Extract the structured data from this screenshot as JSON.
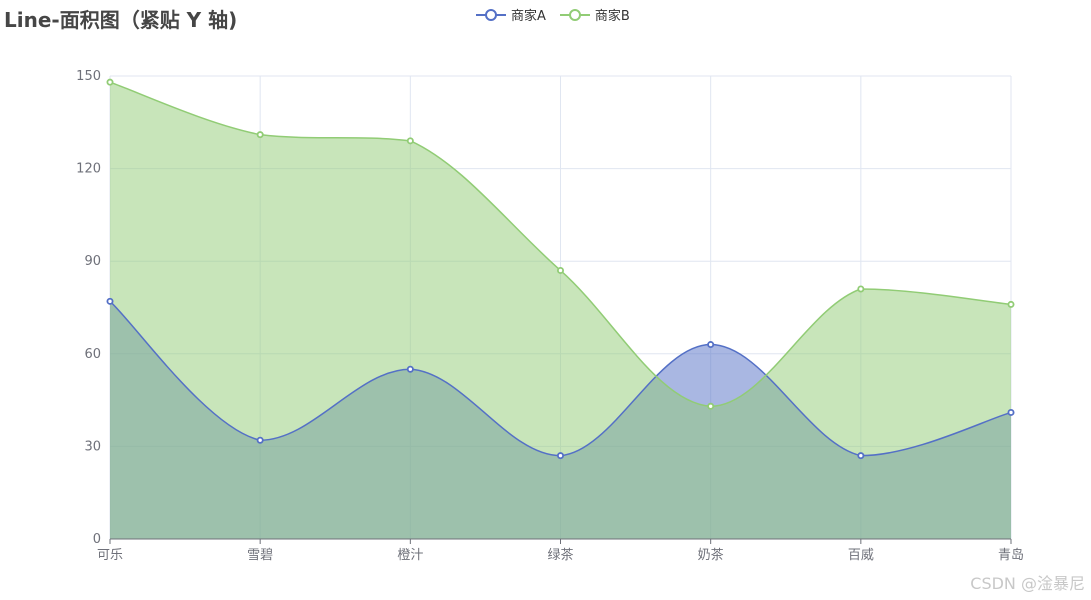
{
  "chart_data": {
    "type": "area",
    "title": "Line-面积图（紧贴 Y 轴)",
    "categories": [
      "可乐",
      "雪碧",
      "橙汁",
      "绿茶",
      "奶茶",
      "百威",
      "青岛"
    ],
    "series": [
      {
        "name": "商家A",
        "values": [
          77,
          32,
          55,
          27,
          63,
          27,
          41
        ],
        "color": "#5470c6",
        "fill": "rgba(84,112,198,0.5)"
      },
      {
        "name": "商家B",
        "values": [
          148,
          131,
          129,
          87,
          43,
          81,
          76
        ],
        "color": "#91cc75",
        "fill": "rgba(145,204,117,0.5)"
      }
    ],
    "ylim": [
      0,
      150
    ],
    "yticks": [
      0,
      30,
      60,
      90,
      120,
      150
    ],
    "smooth": true,
    "boundary_gap": false,
    "grid": true,
    "legend_position": "top-center"
  },
  "watermark": "CSDN @淦暴尼"
}
